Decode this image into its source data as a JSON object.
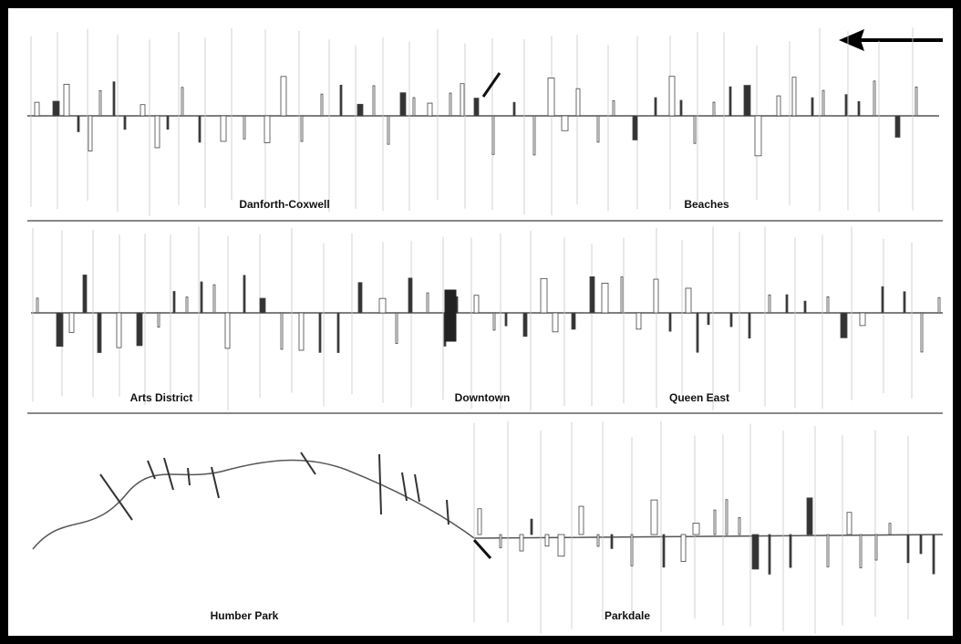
{
  "direction_arrow": {
    "icon": "left-arrow-icon"
  },
  "rows": [
    {
      "row": "top",
      "labels": [
        "Danforth-Coxwell",
        "Beaches"
      ]
    },
    {
      "row": "middle",
      "labels": [
        "Arts District",
        "Downtown",
        "Queen East"
      ]
    },
    {
      "row": "bottom",
      "labels": [
        "Humber Park",
        "Parkdale"
      ]
    }
  ],
  "colors": {
    "frame": "#000000",
    "line": "#555555",
    "divider": "#888888"
  }
}
